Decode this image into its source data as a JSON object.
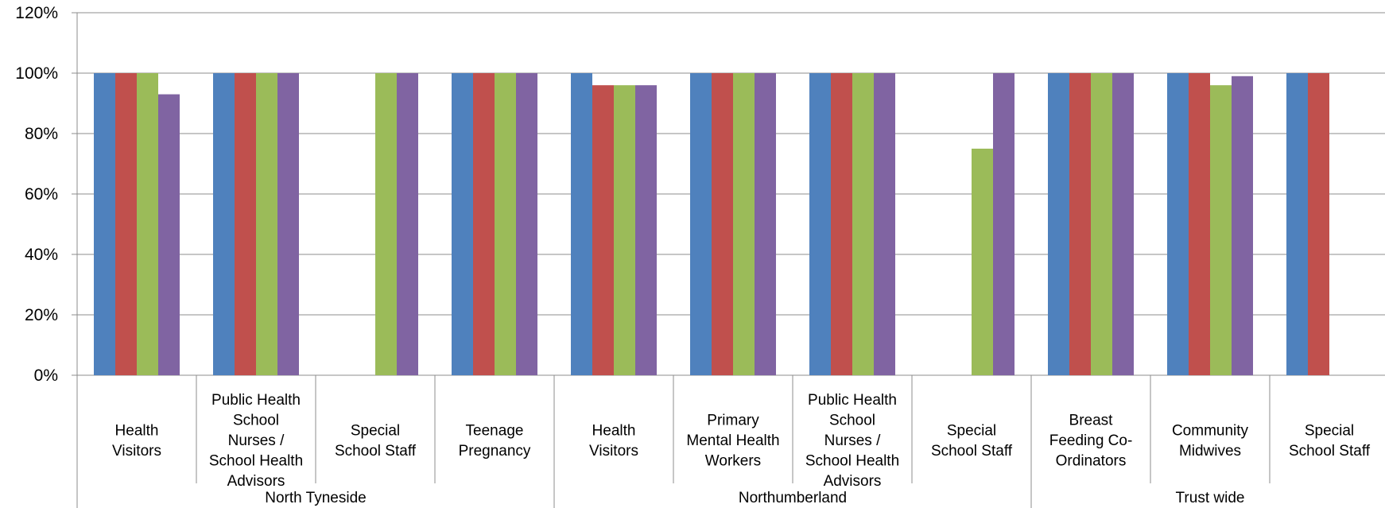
{
  "chart_data": {
    "type": "bar",
    "title": "",
    "xlabel": "",
    "ylabel": "",
    "ylim": [
      0,
      120
    ],
    "y_ticks": [
      "0%",
      "20%",
      "40%",
      "60%",
      "80%",
      "100%",
      "120%"
    ],
    "y_tick_values": [
      0,
      20,
      40,
      60,
      80,
      100,
      120
    ],
    "grid": true,
    "legend": "none",
    "colors": [
      "#4F81BD",
      "#C0504D",
      "#9BBB59",
      "#8064A2"
    ],
    "groups": [
      {
        "name": "North Tyneside",
        "span": 4
      },
      {
        "name": "Northumberland",
        "span": 4
      },
      {
        "name": "Trust wide",
        "span": 3
      }
    ],
    "categories": [
      "Health Visitors",
      "Public Health School Nurses / School Health Advisors",
      "Special School Staff",
      "Teenage Pregnancy",
      "Health Visitors",
      "Primary Mental Health Workers",
      "Public Health School Nurses / School Health Advisors",
      "Special School Staff",
      "Breast Feeding Co-Ordinators",
      "Community Midwives",
      "Special School Staff"
    ],
    "category_lines": [
      [
        "Health",
        "Visitors"
      ],
      [
        "Public Health",
        "School",
        "Nurses /",
        "School Health",
        "Advisors"
      ],
      [
        "Special",
        "School Staff"
      ],
      [
        "Teenage",
        "Pregnancy"
      ],
      [
        "Health",
        "Visitors"
      ],
      [
        "Primary",
        "Mental Health",
        "Workers"
      ],
      [
        "Public Health",
        "School",
        "Nurses /",
        "School Health",
        "Advisors"
      ],
      [
        "Special",
        "School Staff"
      ],
      [
        "Breast",
        "Feeding Co-",
        "Ordinators"
      ],
      [
        "Community",
        "Midwives"
      ],
      [
        "Special",
        "School Staff"
      ]
    ],
    "series": [
      {
        "values": [
          100,
          100,
          null,
          100,
          100,
          100,
          100,
          null,
          100,
          100,
          100
        ]
      },
      {
        "values": [
          100,
          100,
          null,
          100,
          96,
          100,
          100,
          null,
          100,
          100,
          100
        ]
      },
      {
        "values": [
          100,
          100,
          100,
          100,
          96,
          100,
          100,
          75,
          100,
          96,
          null
        ]
      },
      {
        "values": [
          93,
          100,
          100,
          100,
          96,
          100,
          100,
          100,
          100,
          99,
          null
        ]
      }
    ]
  }
}
